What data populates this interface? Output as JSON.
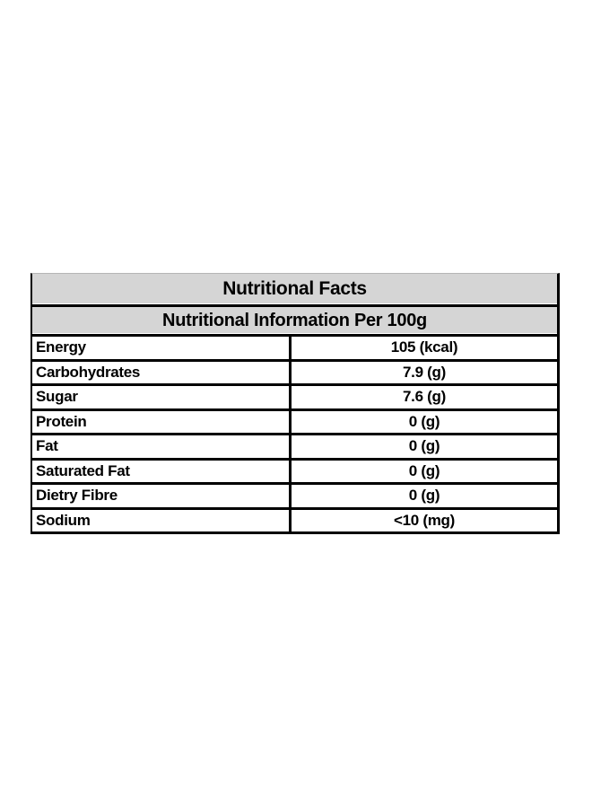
{
  "table": {
    "title": "Nutritional Facts",
    "subtitle": "Nutritional Information Per 100g",
    "rows": [
      {
        "label": "Energy",
        "value": "105 (kcal)"
      },
      {
        "label": "Carbohydrates",
        "value": "7.9 (g)"
      },
      {
        "label": "Sugar",
        "value": "7.6 (g)"
      },
      {
        "label": "Protein",
        "value": "0 (g)"
      },
      {
        "label": "Fat",
        "value": "0 (g)"
      },
      {
        "label": "Saturated Fat",
        "value": "0 (g)"
      },
      {
        "label": "Dietry Fibre",
        "value": "0 (g)"
      },
      {
        "label": "Sodium",
        "value": "<10 (mg)"
      }
    ],
    "colors": {
      "page_bg": "#ffffff",
      "header_bg": "#d5d5d5",
      "border": "#000000",
      "text": "#000000"
    }
  }
}
